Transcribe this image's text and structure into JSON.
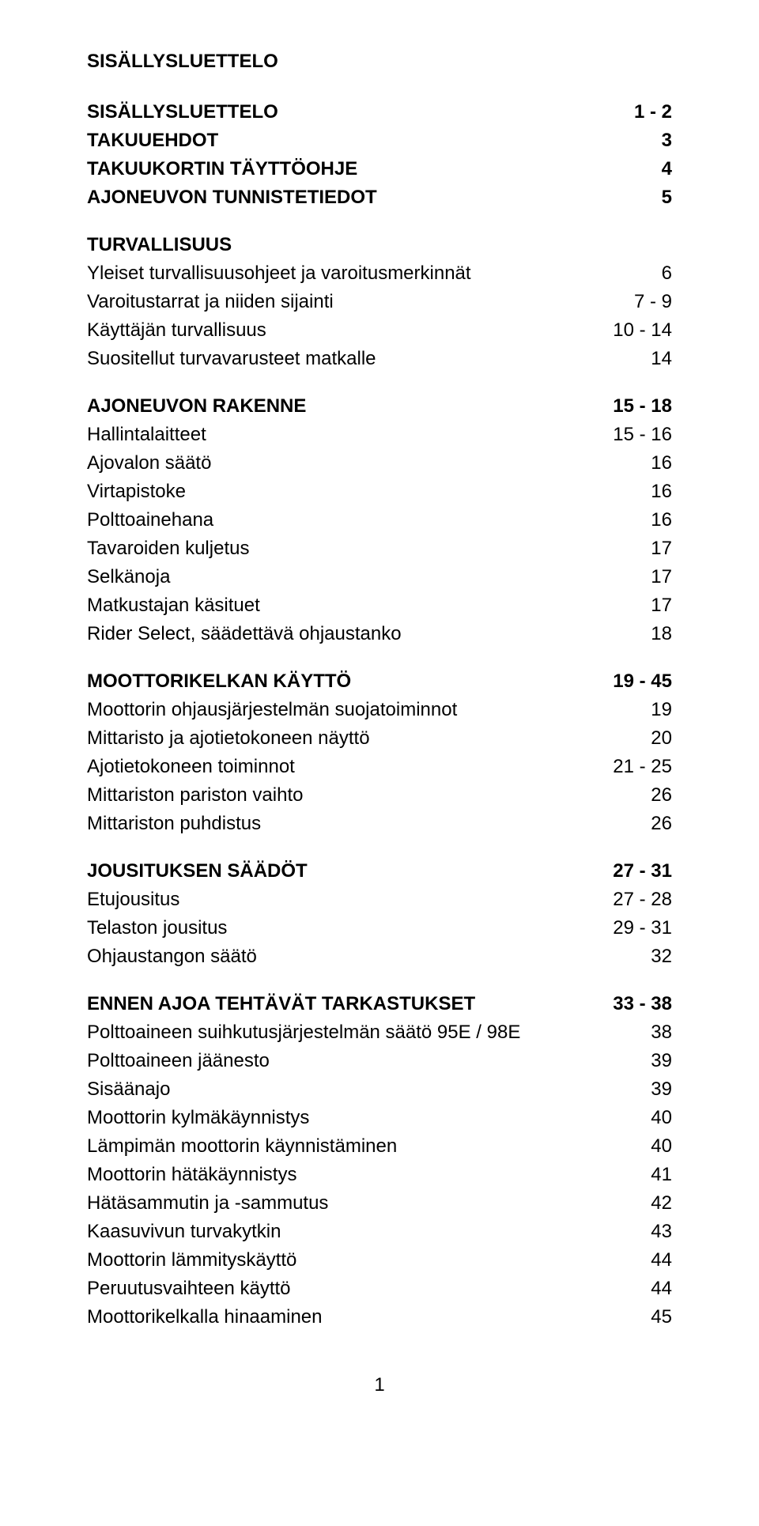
{
  "title": "SISÄLLYSLUETTELO",
  "page_number": "1",
  "toc": [
    {
      "label": "SISÄLLYSLUETTELO",
      "page": "1 - 2",
      "bold": true,
      "gap": false
    },
    {
      "label": "TAKUUEHDOT",
      "page": "3",
      "bold": true,
      "gap": false
    },
    {
      "label": "TAKUUKORTIN TÄYTTÖOHJE",
      "page": "4",
      "bold": true,
      "gap": false
    },
    {
      "label": "AJONEUVON TUNNISTETIEDOT",
      "page": "5",
      "bold": true,
      "gap": false
    },
    {
      "label": "TURVALLISUUS",
      "page": "",
      "bold": true,
      "gap": true
    },
    {
      "label": "Yleiset turvallisuusohjeet ja varoitusmerkinnät",
      "page": "6",
      "bold": false,
      "gap": false
    },
    {
      "label": "Varoitustarrat ja niiden sijainti",
      "page": "7 - 9",
      "bold": false,
      "gap": false
    },
    {
      "label": "Käyttäjän turvallisuus",
      "page": "10 - 14",
      "bold": false,
      "gap": false
    },
    {
      "label": "Suositellut turvavarusteet matkalle",
      "page": "14",
      "bold": false,
      "gap": false
    },
    {
      "label": "AJONEUVON RAKENNE",
      "page": "15 - 18",
      "bold": true,
      "gap": true
    },
    {
      "label": "Hallintalaitteet",
      "page": "15 - 16",
      "bold": false,
      "gap": false
    },
    {
      "label": "Ajovalon säätö",
      "page": "16",
      "bold": false,
      "gap": false
    },
    {
      "label": "Virtapistoke",
      "page": "16",
      "bold": false,
      "gap": false
    },
    {
      "label": "Polttoainehana",
      "page": "16",
      "bold": false,
      "gap": false
    },
    {
      "label": "Tavaroiden kuljetus",
      "page": "17",
      "bold": false,
      "gap": false
    },
    {
      "label": "Selkänoja",
      "page": "17",
      "bold": false,
      "gap": false
    },
    {
      "label": "Matkustajan käsituet",
      "page": "17",
      "bold": false,
      "gap": false
    },
    {
      "label": "Rider Select, säädettävä ohjaustanko",
      "page": "18",
      "bold": false,
      "gap": false
    },
    {
      "label": "MOOTTORIKELKAN KÄYTTÖ",
      "page": "19 - 45",
      "bold": true,
      "gap": true
    },
    {
      "label": "Moottorin ohjausjärjestelmän suojatoiminnot",
      "page": "19",
      "bold": false,
      "gap": false
    },
    {
      "label": "Mittaristo ja ajotietokoneen näyttö",
      "page": "20",
      "bold": false,
      "gap": false
    },
    {
      "label": "Ajotietokoneen toiminnot",
      "page": "21 - 25",
      "bold": false,
      "gap": false
    },
    {
      "label": "Mittariston pariston vaihto",
      "page": "26",
      "bold": false,
      "gap": false
    },
    {
      "label": "Mittariston puhdistus",
      "page": "26",
      "bold": false,
      "gap": false
    },
    {
      "label": "JOUSITUKSEN SÄÄDÖT",
      "page": "27 - 31",
      "bold": true,
      "gap": true
    },
    {
      "label": "Etujousitus",
      "page": "27 - 28",
      "bold": false,
      "gap": false
    },
    {
      "label": "Telaston jousitus",
      "page": "29 - 31",
      "bold": false,
      "gap": false
    },
    {
      "label": "Ohjaustangon säätö",
      "page": "32",
      "bold": false,
      "gap": false
    },
    {
      "label": "ENNEN AJOA TEHTÄVÄT TARKASTUKSET",
      "page": "33 - 38",
      "bold": true,
      "gap": true
    },
    {
      "label": "Polttoaineen suihkutusjärjestelmän säätö 95E / 98E",
      "page": "38",
      "bold": false,
      "gap": false
    },
    {
      "label": "Polttoaineen jäänesto",
      "page": "39",
      "bold": false,
      "gap": false
    },
    {
      "label": "Sisäänajo",
      "page": "39",
      "bold": false,
      "gap": false
    },
    {
      "label": "Moottorin kylmäkäynnistys",
      "page": "40",
      "bold": false,
      "gap": false
    },
    {
      "label": "Lämpimän moottorin käynnistäminen",
      "page": "40",
      "bold": false,
      "gap": false
    },
    {
      "label": "Moottorin hätäkäynnistys",
      "page": "41",
      "bold": false,
      "gap": false
    },
    {
      "label": "Hätäsammutin ja -sammutus",
      "page": "42",
      "bold": false,
      "gap": false
    },
    {
      "label": "Kaasuvivun turvakytkin",
      "page": "43",
      "bold": false,
      "gap": false
    },
    {
      "label": "Moottorin lämmityskäyttö",
      "page": "44",
      "bold": false,
      "gap": false
    },
    {
      "label": "Peruutusvaihteen käyttö",
      "page": "44",
      "bold": false,
      "gap": false
    },
    {
      "label": "Moottorikelkalla hinaaminen",
      "page": "45",
      "bold": false,
      "gap": false
    }
  ]
}
